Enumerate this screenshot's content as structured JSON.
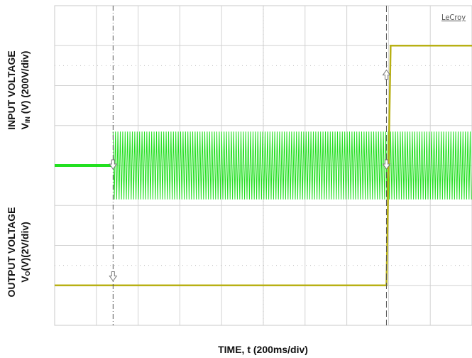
{
  "chart_data": {
    "type": "line",
    "instrument_brand": "LeCroy",
    "xlabel": "TIME, t (200ms/div)",
    "ylabels": {
      "input": {
        "line1": "INPUT VOLTAGE",
        "sym": "V",
        "sub": "IN",
        "rest": " (V)  (200V/div)"
      },
      "output": {
        "line1": "OUTPUT VOLTAGE",
        "sym": "V",
        "sub": "O",
        "rest": "(V)(2V/div)"
      }
    },
    "grid": true,
    "divisions": {
      "x": 10,
      "y": 8
    },
    "x_unit": "div",
    "series": [
      {
        "color": "#22e020",
        "x": [
          0,
          1.4,
          1.4,
          10
        ],
        "y": [
          4.0,
          4.0,
          4.0,
          4.0
        ],
        "ac_amplitude_div": 0.85,
        "ac_start_div": 1.4,
        "description_kind": "ac-input"
      },
      {
        "color": "#b8b014",
        "x": [
          0,
          7.95,
          7.95,
          8.05,
          8.05,
          10
        ],
        "y": [
          1.0,
          1.0,
          1.0,
          6.9,
          7.0,
          7.0
        ],
        "description_kind": "output-step"
      }
    ],
    "markers": {
      "vertical_lines_x_div": [
        1.4,
        7.95
      ],
      "arrows": [
        {
          "x_div": 1.4,
          "y_div": 4.0,
          "dir": "down"
        },
        {
          "x_div": 1.4,
          "y_div": 1.2,
          "dir": "down"
        },
        {
          "x_div": 7.95,
          "y_div": 6.3,
          "dir": "up"
        },
        {
          "x_div": 7.95,
          "y_div": 4.0,
          "dir": "down"
        }
      ]
    }
  }
}
